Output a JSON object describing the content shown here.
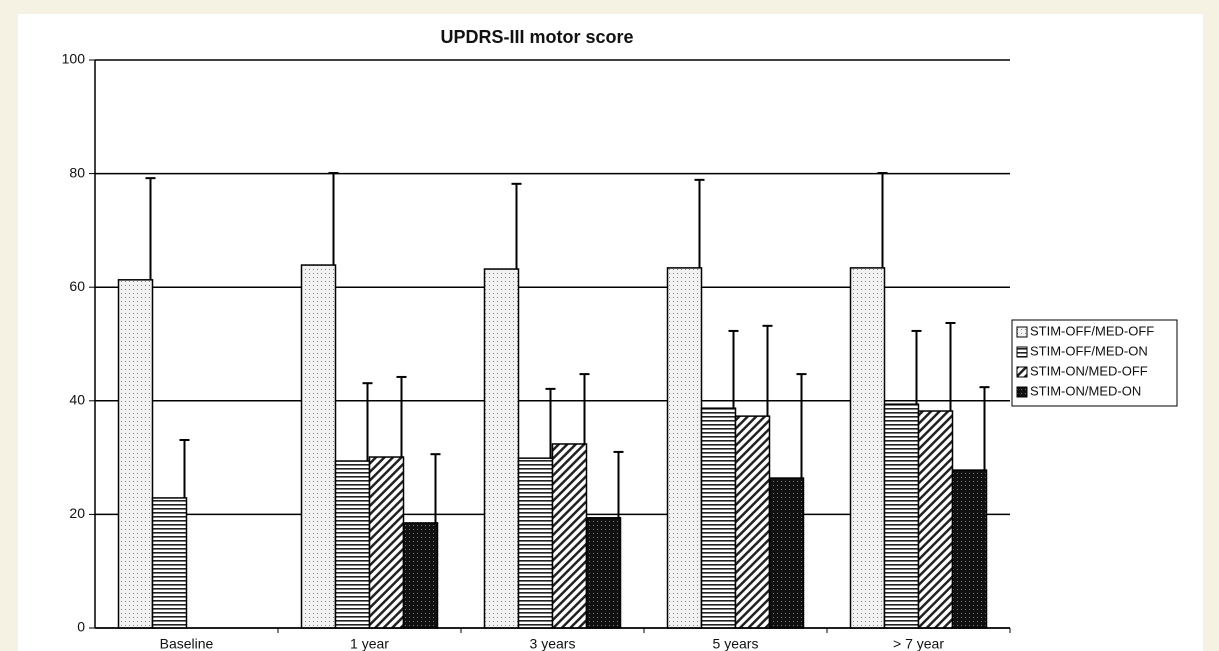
{
  "chart_data": {
    "type": "bar",
    "title": "UPDRS-III motor score",
    "categories": [
      "Baseline",
      "1 year",
      "3 years",
      "5 years",
      "> 7 year"
    ],
    "series": [
      {
        "name": "STIM-OFF/MED-OFF",
        "pattern": "light-dots",
        "values": [
          61.3,
          63.9,
          63.2,
          63.4,
          63.4
        ],
        "errors": [
          17.9,
          16.2,
          15.0,
          15.5,
          16.7
        ]
      },
      {
        "name": "STIM-OFF/MED-ON",
        "pattern": "hlines",
        "values": [
          22.9,
          29.4,
          29.9,
          38.7,
          39.4
        ],
        "errors": [
          10.2,
          13.7,
          12.2,
          13.6,
          12.9
        ]
      },
      {
        "name": "STIM-ON/MED-OFF",
        "pattern": "diag",
        "values": [
          null,
          30.1,
          32.4,
          37.3,
          38.2
        ],
        "errors": [
          null,
          14.1,
          12.3,
          15.9,
          15.5
        ]
      },
      {
        "name": "STIM-ON/MED-ON",
        "pattern": "dark-dots",
        "values": [
          null,
          18.5,
          19.4,
          26.4,
          27.8
        ],
        "errors": [
          null,
          12.1,
          11.6,
          18.3,
          14.6
        ]
      }
    ],
    "ylim": [
      0,
      100
    ],
    "yticks": [
      0,
      20,
      40,
      60,
      80,
      100
    ],
    "grid": true,
    "legend": "right"
  }
}
